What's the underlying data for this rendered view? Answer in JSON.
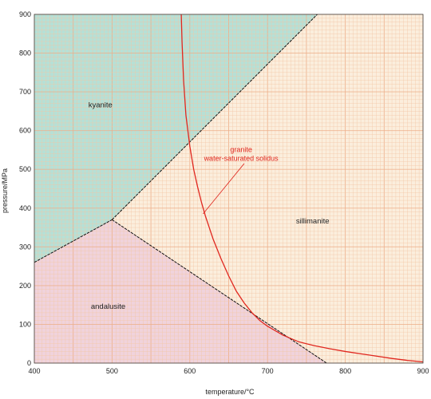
{
  "chart_data": {
    "type": "line",
    "xlabel": "temperature/°C",
    "ylabel": "pressure/MPa",
    "xlim": [
      400,
      900
    ],
    "ylim": [
      0,
      900
    ],
    "x_ticks": [
      400,
      500,
      600,
      700,
      800,
      900
    ],
    "y_ticks": [
      0,
      100,
      200,
      300,
      400,
      500,
      600,
      700,
      800,
      900
    ],
    "grid": true,
    "colors": {
      "background": "#fbeedd",
      "grid_minor": "#f3c6a6",
      "grid_major": "#eeb08b",
      "kyanite_fill": "#b6e0d6",
      "andalusite_fill": "#f0d3dc",
      "phase_boundary": "#111111",
      "solidus": "#e0271f"
    },
    "regions": [
      {
        "name": "kyanite",
        "polygon": [
          [
            400,
            260
          ],
          [
            500,
            370
          ],
          [
            764,
            900
          ],
          [
            400,
            900
          ]
        ],
        "label_at": [
          485,
          660
        ]
      },
      {
        "name": "andalusite",
        "polygon": [
          [
            400,
            0
          ],
          [
            400,
            260
          ],
          [
            500,
            370
          ],
          [
            776,
            0
          ]
        ],
        "label_at": [
          495,
          140
        ]
      },
      {
        "name": "sillimanite",
        "polygon": [],
        "label_at": [
          758,
          360
        ]
      }
    ],
    "series": [
      {
        "style": "boundary",
        "x": [
          400,
          500
        ],
        "y": [
          260,
          370
        ]
      },
      {
        "style": "boundary",
        "x": [
          500,
          764
        ],
        "y": [
          370,
          900
        ]
      },
      {
        "style": "boundary",
        "x": [
          500,
          776
        ],
        "y": [
          370,
          0
        ]
      },
      {
        "style": "solidus",
        "x": [
          589,
          590,
          592,
          595,
          600,
          605,
          610,
          615,
          620,
          625,
          630,
          640,
          650,
          660,
          670,
          680,
          690,
          700,
          720,
          740,
          760,
          780,
          800,
          820,
          840,
          860,
          880,
          900
        ],
        "y": [
          900,
          830,
          730,
          640,
          560,
          500,
          455,
          415,
          380,
          350,
          320,
          270,
          225,
          185,
          155,
          130,
          110,
          95,
          72,
          55,
          45,
          37,
          30,
          24,
          18,
          12,
          7,
          3
        ]
      }
    ],
    "annotations": [
      {
        "text": "kyanite",
        "x": 485,
        "y": 660,
        "kind": "region"
      },
      {
        "text": "andalusite",
        "x": 495,
        "y": 140,
        "kind": "region"
      },
      {
        "text": "sillimanite",
        "x": 758,
        "y": 360,
        "kind": "region"
      },
      {
        "text": "granite",
        "x": 666,
        "y": 545,
        "kind": "curve"
      },
      {
        "text": "water-saturated solidus",
        "x": 666,
        "y": 522,
        "kind": "curve"
      }
    ],
    "leader_line": {
      "from": [
        670,
        515
      ],
      "to": [
        617,
        385
      ]
    }
  }
}
